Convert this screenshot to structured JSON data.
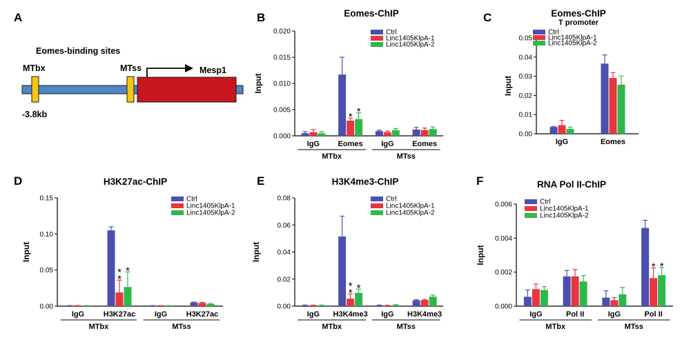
{
  "figure": {
    "colors": {
      "ctrl": "#4a4fb0",
      "klpa1": "#e8363f",
      "klpa2": "#2fb84a"
    },
    "schematic": {
      "panel_label": "A",
      "heading": "Eomes-binding sites",
      "site1": "MTbx",
      "site2": "MTss",
      "gene": "Mesp1",
      "distance": "-3.8kb",
      "colors": {
        "line": "#4f86c6",
        "site": "#f5c518",
        "gene": "#c8161d"
      }
    }
  },
  "chart_data": [
    {
      "id": "B",
      "panel_label": "B",
      "type": "bar",
      "title": "Eomes-ChIP",
      "subtitle": "",
      "ylabel": "Input",
      "ylim": [
        0,
        0.02
      ],
      "yticks": [
        "0.000",
        "0.005",
        "0.010",
        "0.015",
        "0.020"
      ],
      "categories": [
        "IgG",
        "Eomes",
        "IgG",
        "Eomes"
      ],
      "groups": [
        {
          "label": "MTbx",
          "span": [
            0,
            1
          ]
        },
        {
          "label": "MTss",
          "span": [
            2,
            3
          ]
        }
      ],
      "series": [
        {
          "name": "Ctrl",
          "color": "#4a4fb0",
          "values": [
            0.0005,
            0.0117,
            0.0009,
            0.0012
          ],
          "errors": [
            0.0003,
            0.0033,
            0.0002,
            0.0004
          ]
        },
        {
          "name": "Linc1405KlpA-1",
          "color": "#e8363f",
          "values": [
            0.0007,
            0.0029,
            0.0007,
            0.0011
          ],
          "errors": [
            0.0005,
            0.0005,
            0.0002,
            0.0004
          ]
        },
        {
          "name": "Linc1405KlpA-2",
          "color": "#2fb84a",
          "values": [
            0.0005,
            0.0032,
            0.0011,
            0.0013
          ],
          "errors": [
            0.0003,
            0.0012,
            0.0003,
            0.0004
          ]
        }
      ],
      "stars": [
        {
          "cat": 1,
          "series": 1,
          "text": "*"
        },
        {
          "cat": 1,
          "series": 2,
          "text": "*"
        }
      ]
    },
    {
      "id": "C",
      "panel_label": "C",
      "type": "bar",
      "title": "Eomes-ChIP",
      "subtitle": "T promoter",
      "ylabel": "Input",
      "ylim": [
        0,
        0.05
      ],
      "yticks": [
        "0.00",
        "0.01",
        "0.02",
        "0.03",
        "0.04",
        "0.05"
      ],
      "categories": [
        "IgG",
        "Eomes"
      ],
      "groups": [],
      "series": [
        {
          "name": "Ctrl",
          "color": "#4a4fb0",
          "values": [
            0.0035,
            0.0366
          ],
          "errors": [
            0.0003,
            0.0045
          ]
        },
        {
          "name": "Linc1405KlpA-1",
          "color": "#e8363f",
          "values": [
            0.0045,
            0.0291
          ],
          "errors": [
            0.0025,
            0.0028
          ]
        },
        {
          "name": "Linc1405KlpA-2",
          "color": "#2fb84a",
          "values": [
            0.0025,
            0.0256
          ],
          "errors": [
            0.001,
            0.0045
          ]
        }
      ],
      "stars": []
    },
    {
      "id": "D",
      "panel_label": "D",
      "type": "bar",
      "title": "H3K27ac-ChIP",
      "subtitle": "",
      "ylabel": "Input",
      "ylim": [
        0,
        0.15
      ],
      "yticks": [
        "0.00",
        "0.05",
        "0.10",
        "0.15"
      ],
      "categories": [
        "IgG",
        "H3K27ac",
        "IgG",
        "H3K27ac"
      ],
      "groups": [
        {
          "label": "MTbx",
          "span": [
            0,
            1
          ]
        },
        {
          "label": "MTss",
          "span": [
            2,
            3
          ]
        }
      ],
      "series": [
        {
          "name": "Ctrl",
          "color": "#4a4fb0",
          "values": [
            0.0005,
            0.105,
            0.0005,
            0.005
          ],
          "errors": [
            0.0003,
            0.005,
            0.0003,
            0.0007
          ]
        },
        {
          "name": "Linc1405KlpA-1",
          "color": "#e8363f",
          "values": [
            0.0005,
            0.019,
            0.0005,
            0.0045
          ],
          "errors": [
            0.0003,
            0.017,
            0.0003,
            0.0007
          ]
        },
        {
          "name": "Linc1405KlpA-2",
          "color": "#2fb84a",
          "values": [
            0.0005,
            0.0265,
            0.0005,
            0.003
          ],
          "errors": [
            0.0003,
            0.021,
            0.0003,
            0.0007
          ]
        }
      ],
      "stars": [
        {
          "cat": 1,
          "series": 1,
          "text": "**"
        },
        {
          "cat": 1,
          "series": 2,
          "text": "*"
        }
      ]
    },
    {
      "id": "E",
      "panel_label": "E",
      "type": "bar",
      "title": "H3K4me3-ChIP",
      "subtitle": "",
      "ylabel": "Input",
      "ylim": [
        0,
        0.08
      ],
      "yticks": [
        "0.00",
        "0.02",
        "0.04",
        "0.06",
        "0.08"
      ],
      "categories": [
        "IgG",
        "H3K4me3",
        "IgG",
        "H3K4me3"
      ],
      "groups": [
        {
          "label": "MTbx",
          "span": [
            0,
            1
          ]
        },
        {
          "label": "MTss",
          "span": [
            2,
            3
          ]
        }
      ],
      "series": [
        {
          "name": "Ctrl",
          "color": "#4a4fb0",
          "values": [
            0.0005,
            0.0515,
            0.0005,
            0.0043
          ],
          "errors": [
            0.0003,
            0.015,
            0.0003,
            0.0005
          ]
        },
        {
          "name": "Linc1405KlpA-1",
          "color": "#e8363f",
          "values": [
            0.0005,
            0.0055,
            0.0004,
            0.0045
          ],
          "errors": [
            0.0003,
            0.0035,
            0.0003,
            0.0005
          ]
        },
        {
          "name": "Linc1405KlpA-2",
          "color": "#2fb84a",
          "values": [
            0.0005,
            0.0098,
            0.0008,
            0.007
          ],
          "errors": [
            0.0003,
            0.0028,
            0.0003,
            0.0012
          ]
        }
      ],
      "stars": [
        {
          "cat": 1,
          "series": 1,
          "text": "**"
        },
        {
          "cat": 1,
          "series": 2,
          "text": "*"
        }
      ]
    },
    {
      "id": "F",
      "panel_label": "F",
      "type": "bar",
      "title": "RNA Pol II-ChIP",
      "subtitle": "",
      "ylabel": "Input",
      "ylim": [
        0,
        0.006
      ],
      "yticks": [
        "0.000",
        "0.002",
        "0.004",
        "0.006"
      ],
      "categories": [
        "IgG",
        "Pol II",
        "IgG",
        "Pol II"
      ],
      "groups": [
        {
          "label": "MTbx",
          "span": [
            0,
            1
          ]
        },
        {
          "label": "MTss",
          "span": [
            2,
            3
          ]
        }
      ],
      "series": [
        {
          "name": "Ctrl",
          "color": "#4a4fb0",
          "values": [
            0.00055,
            0.00175,
            0.0005,
            0.0046
          ],
          "errors": [
            0.0004,
            0.00035,
            0.0004,
            0.00045
          ]
        },
        {
          "name": "Linc1405KlpA-1",
          "color": "#e8363f",
          "values": [
            0.001,
            0.00175,
            0.00035,
            0.00165
          ],
          "errors": [
            0.0003,
            0.0004,
            0.00015,
            0.0006
          ]
        },
        {
          "name": "Linc1405KlpA-2",
          "color": "#2fb84a",
          "values": [
            0.00095,
            0.00145,
            0.0007,
            0.00182
          ],
          "errors": [
            0.0002,
            0.00035,
            0.0004,
            0.00045
          ]
        }
      ],
      "stars": [
        {
          "cat": 3,
          "series": 1,
          "text": "*"
        },
        {
          "cat": 3,
          "series": 2,
          "text": "*"
        }
      ]
    }
  ]
}
